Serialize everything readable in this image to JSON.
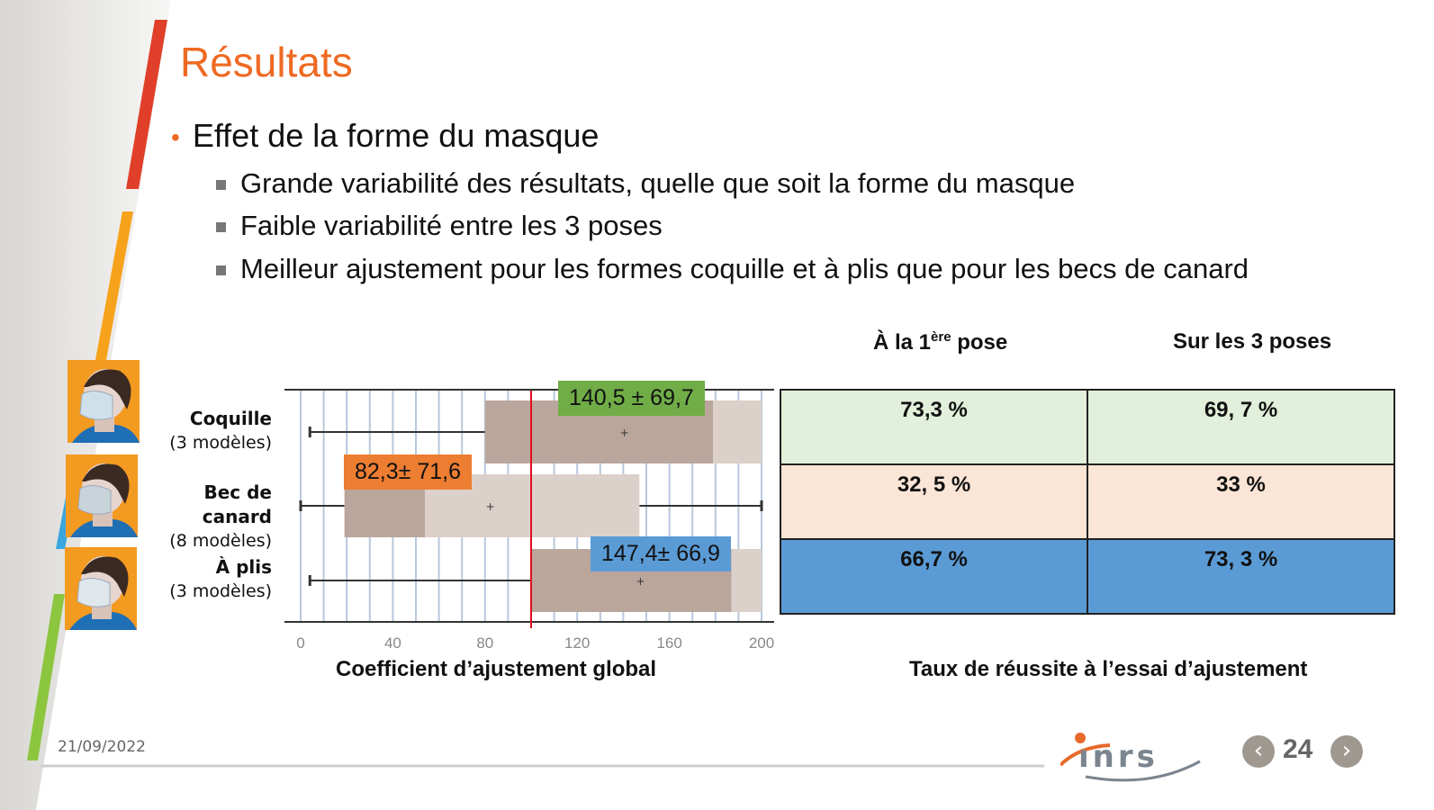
{
  "title": "Résultats",
  "bullet": "Effet de la forme du masque",
  "sub_bullets": [
    "Grande variabilité des résultats, quelle que soit la forme du masque",
    "Faible variabilité entre les 3 poses",
    "Meilleur ajustement pour les formes coquille et à plis que pour les becs de canard"
  ],
  "categories": [
    {
      "name": "Coquille",
      "models": "(3 modèles)"
    },
    {
      "name": "Bec de canard",
      "models": "(8 modèles)"
    },
    {
      "name": "À plis",
      "models": "(3 modèles)"
    }
  ],
  "chart_data": {
    "type": "boxplot",
    "xlabel": "Coefficient d’ajustement global",
    "xlim": [
      0,
      200
    ],
    "xticks": [
      "0",
      "40",
      "80",
      "120",
      "160",
      "200"
    ],
    "reference_line": 100,
    "series": [
      {
        "name": "Coquille",
        "min": 4,
        "q1": 80,
        "median": 179,
        "q3": 200,
        "max": 200,
        "mean": 140.5,
        "label": "140,5 ± 69,7",
        "color": "#70ad47"
      },
      {
        "name": "Bec de canard",
        "min": 0,
        "q1": 19,
        "median": 54,
        "q3": 147,
        "max": 200,
        "mean": 82.3,
        "label": "82,3± 71,6",
        "color": "#ed7d31"
      },
      {
        "name": "À plis",
        "min": 4,
        "q1": 100,
        "median": 187,
        "q3": 200,
        "max": 200,
        "mean": 147.4,
        "label": "147,4± 66,9",
        "color": "#5b9bd5"
      }
    ]
  },
  "table": {
    "header_1_prefix": "À la 1",
    "header_1_sup": "ère",
    "header_1_suffix": " pose",
    "header_2": "Sur les 3 poses",
    "rows": [
      {
        "a": "73,3 %",
        "b": "69, 7 %",
        "color": "#e2efda"
      },
      {
        "a": "32, 5 %",
        "b": "33 %",
        "color": "#fbe5d6"
      },
      {
        "a": "66,7 %",
        "b": "73, 3 %",
        "color": "#5b9bd5"
      }
    ],
    "caption": "Taux de réussite à l’essai d’ajustement"
  },
  "footer": {
    "date": "21/09/2022",
    "logo": "inrs",
    "page": "24"
  }
}
